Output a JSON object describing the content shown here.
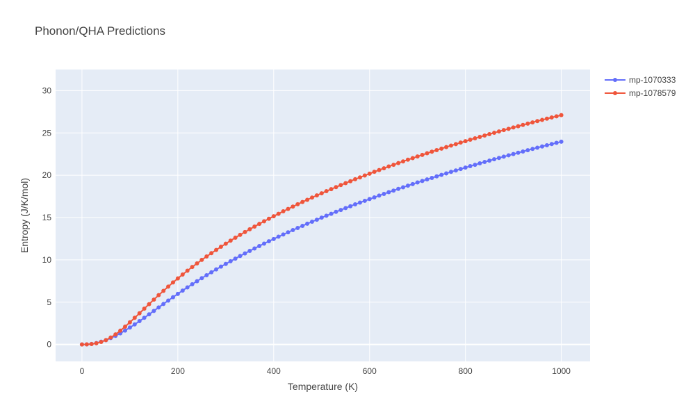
{
  "chart_data": {
    "type": "line",
    "title": "Phonon/QHA Predictions",
    "xlabel": "Temperature (K)",
    "ylabel": "Entropy (J/K/mol)",
    "xlim": [
      -55,
      1060
    ],
    "ylim": [
      -2,
      32.5
    ],
    "xticks": [
      0,
      200,
      400,
      600,
      800,
      1000
    ],
    "yticks": [
      0,
      5,
      10,
      15,
      20,
      25,
      30
    ],
    "grid": true,
    "legend_position": "top-right",
    "series": [
      {
        "name": "mp-1070333",
        "color": "#636efa",
        "x": [
          0,
          10,
          20,
          30,
          40,
          50,
          60,
          70,
          80,
          90,
          100,
          110,
          120,
          130,
          140,
          150,
          160,
          170,
          180,
          190,
          200,
          210,
          220,
          230,
          240,
          250,
          260,
          270,
          280,
          290,
          300,
          310,
          320,
          330,
          340,
          350,
          360,
          370,
          380,
          390,
          400,
          410,
          420,
          430,
          440,
          450,
          460,
          470,
          480,
          490,
          500,
          510,
          520,
          530,
          540,
          550,
          560,
          570,
          580,
          590,
          600,
          610,
          620,
          630,
          640,
          650,
          660,
          670,
          680,
          690,
          700,
          710,
          720,
          730,
          740,
          750,
          760,
          770,
          780,
          790,
          800,
          810,
          820,
          830,
          840,
          850,
          860,
          870,
          880,
          890,
          900,
          910,
          920,
          930,
          940,
          950,
          960,
          970,
          980,
          990,
          1000
        ],
        "y": [
          0,
          0.01,
          0.06,
          0.17,
          0.33,
          0.52,
          0.76,
          1.02,
          1.32,
          1.65,
          2.0,
          2.37,
          2.76,
          3.15,
          3.56,
          3.97,
          4.38,
          4.79,
          5.19,
          5.59,
          5.98,
          6.37,
          6.75,
          7.12,
          7.48,
          7.84,
          8.19,
          8.53,
          8.87,
          9.2,
          9.52,
          9.84,
          10.15,
          10.46,
          10.76,
          11.06,
          11.35,
          11.64,
          11.92,
          12.2,
          12.47,
          12.74,
          13.0,
          13.26,
          13.52,
          13.77,
          14.02,
          14.27,
          14.51,
          14.75,
          14.99,
          15.22,
          15.45,
          15.68,
          15.9,
          16.12,
          16.34,
          16.56,
          16.77,
          16.98,
          17.19,
          17.39,
          17.6,
          17.8,
          18.0,
          18.19,
          18.39,
          18.58,
          18.77,
          18.96,
          19.15,
          19.33,
          19.51,
          19.69,
          19.87,
          20.05,
          20.22,
          20.4,
          20.57,
          20.74,
          20.91,
          21.08,
          21.24,
          21.41,
          21.57,
          21.73,
          21.89,
          22.05,
          22.2,
          22.36,
          22.51,
          22.66,
          22.81,
          22.96,
          23.11,
          23.26,
          23.4,
          23.55,
          23.69,
          23.83,
          23.97
        ]
      },
      {
        "name": "mp-1078579",
        "color": "#ef553b",
        "x": [
          0,
          10,
          20,
          30,
          40,
          50,
          60,
          70,
          80,
          90,
          100,
          110,
          120,
          130,
          140,
          150,
          160,
          170,
          180,
          190,
          200,
          210,
          220,
          230,
          240,
          250,
          260,
          270,
          280,
          290,
          300,
          310,
          320,
          330,
          340,
          350,
          360,
          370,
          380,
          390,
          400,
          410,
          420,
          430,
          440,
          450,
          460,
          470,
          480,
          490,
          500,
          510,
          520,
          530,
          540,
          550,
          560,
          570,
          580,
          590,
          600,
          610,
          620,
          630,
          640,
          650,
          660,
          670,
          680,
          690,
          700,
          710,
          720,
          730,
          740,
          750,
          760,
          770,
          780,
          790,
          800,
          810,
          820,
          830,
          840,
          850,
          860,
          870,
          880,
          890,
          900,
          910,
          920,
          930,
          940,
          950,
          960,
          970,
          980,
          990,
          1000
        ],
        "y": [
          0,
          0.01,
          0.05,
          0.15,
          0.3,
          0.52,
          0.82,
          1.19,
          1.63,
          2.11,
          2.62,
          3.15,
          3.69,
          4.23,
          4.77,
          5.3,
          5.83,
          6.34,
          6.84,
          7.33,
          7.81,
          8.27,
          8.72,
          9.16,
          9.58,
          10.0,
          10.4,
          10.79,
          11.17,
          11.55,
          11.91,
          12.27,
          12.62,
          12.96,
          13.29,
          13.62,
          13.94,
          14.25,
          14.56,
          14.86,
          15.16,
          15.45,
          15.74,
          16.02,
          16.3,
          16.57,
          16.84,
          17.1,
          17.36,
          17.62,
          17.87,
          18.12,
          18.36,
          18.6,
          18.84,
          19.07,
          19.3,
          19.53,
          19.75,
          19.97,
          20.19,
          20.41,
          20.62,
          20.83,
          21.04,
          21.24,
          21.44,
          21.64,
          21.84,
          22.03,
          22.22,
          22.41,
          22.6,
          22.79,
          22.97,
          23.15,
          23.33,
          23.51,
          23.68,
          23.86,
          24.03,
          24.2,
          24.37,
          24.53,
          24.7,
          24.86,
          25.02,
          25.18,
          25.34,
          25.49,
          25.65,
          25.8,
          25.95,
          26.1,
          26.25,
          26.4,
          26.54,
          26.69,
          26.83,
          26.97,
          27.11
        ]
      }
    ]
  }
}
